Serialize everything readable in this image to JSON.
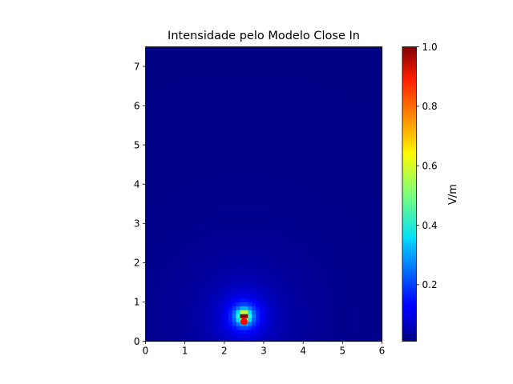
{
  "chart_data": {
    "type": "heatmap",
    "title": "Intensidade pelo Modelo Close In",
    "xlabel": "",
    "ylabel": "",
    "xlim": [
      0,
      6
    ],
    "ylim": [
      0,
      7.5
    ],
    "x_ticks": [
      "0",
      "1",
      "2",
      "3",
      "4",
      "5",
      "6"
    ],
    "y_ticks": [
      "0",
      "1",
      "2",
      "3",
      "4",
      "5",
      "6",
      "7"
    ],
    "colormap": "jet",
    "grid": false,
    "source": {
      "x": 2.5,
      "y": 0.5,
      "marker_color": "#ff0000"
    },
    "field_peak": {
      "x": 2.5,
      "y": 0.65
    },
    "grid_step": 0.1,
    "colorbar": {
      "label": "V/m",
      "min": 0.01,
      "max": 1.0,
      "ticks": [
        "0.2",
        "0.4",
        "0.6",
        "0.8",
        "1.0"
      ],
      "tick_values": [
        0.2,
        0.4,
        0.6,
        0.8,
        1.0
      ]
    }
  }
}
